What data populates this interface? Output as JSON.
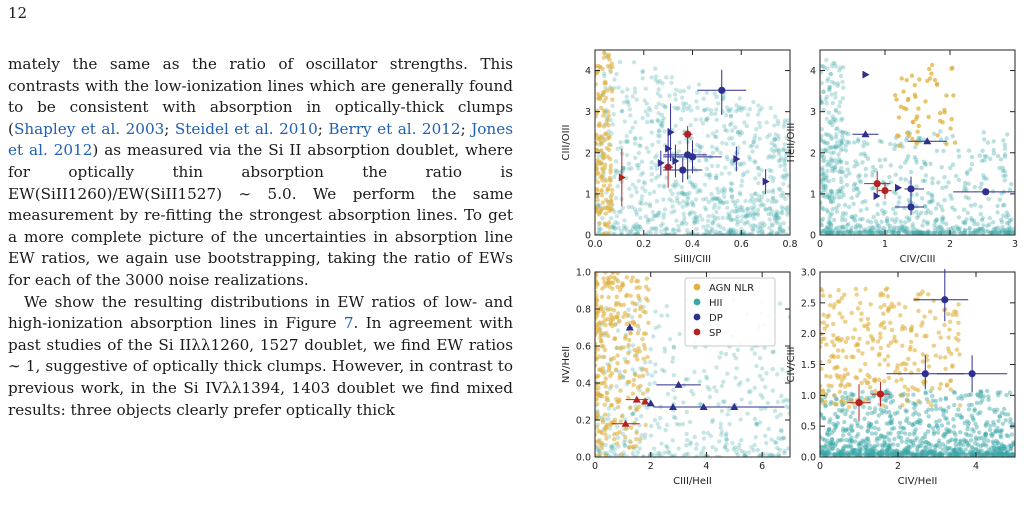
{
  "page_number": "12",
  "paragraphs": [
    {
      "indent": false,
      "segments": [
        {
          "t": "mately the same as the ratio of oscillator strengths. This contrasts with the low-ionization lines which are generally found to be consistent with absorption in optically-thick clumps ("
        },
        {
          "t": "Shapley et al. 2003",
          "cite": true
        },
        {
          "t": "; "
        },
        {
          "t": "Steidel et al. 2010",
          "cite": true
        },
        {
          "t": "; "
        },
        {
          "t": "Berry et al. 2012",
          "cite": true
        },
        {
          "t": "; "
        },
        {
          "t": "Jones et al. 2012",
          "cite": true
        },
        {
          "t": ") as measured via the Si II absorption doublet, where for optically thin absorption the ratio is EW(SiII1260)/EW(SiII1527) ∼ 5.0. We perform the same measurement by re-fitting the strongest absorption lines. To get a more complete picture of the uncertainties in absorption line EW ratios, we again use bootstrapping, taking the ratio of EWs for each of the 3000 noise realizations."
        }
      ]
    },
    {
      "indent": true,
      "segments": [
        {
          "t": "We show the resulting distributions in EW ratios of low- and high-ionization absorption lines in Figure "
        },
        {
          "t": "7",
          "cite": true
        },
        {
          "t": ". In agreement with past studies of the Si IIλλ1260, 1527 doublet, we find EW ratios ∼ 1, suggestive of optically thick clumps. However, in contrast to previous work, in the Si IVλλ1394, 1403 doublet we find mixed results: three objects clearly prefer optically thick"
        }
      ]
    }
  ],
  "colors": {
    "agn": "#e0b040",
    "hii": "#3aa6a6",
    "dp": "#2f2f8f",
    "sp": "#b22222",
    "cite": "#1f5fb5"
  },
  "chart_data": [
    {
      "type": "scatter",
      "id": "tl",
      "xlabel": "SiIII/CIII",
      "ylabel": "CIII/OIII",
      "xlim": [
        0,
        0.8
      ],
      "ylim": [
        0,
        4.5
      ],
      "xticks": [
        0.0,
        0.2,
        0.4,
        0.6,
        0.8
      ],
      "xticklabels": [
        "0.0",
        "0.2",
        "0.4",
        "0.6",
        "0.8"
      ],
      "yticks": [
        0,
        1,
        2,
        3,
        4
      ],
      "yticklabels": [
        "0",
        "1",
        "2",
        "3",
        "4"
      ],
      "points": [
        {
          "x": 0.52,
          "y": 3.52,
          "xe": [
            0.1,
            0.1
          ],
          "ye": [
            0.6,
            0.5
          ],
          "type": "dp",
          "marker": "circle"
        },
        {
          "x": 0.38,
          "y": 1.95,
          "xe": [
            0.1,
            0.08
          ],
          "ye": [
            0.6,
            0.6
          ],
          "type": "dp",
          "marker": "circle"
        },
        {
          "x": 0.4,
          "y": 1.9,
          "xe": [
            0.12,
            0.12
          ],
          "ye": [
            0.4,
            0.4
          ],
          "type": "dp",
          "marker": "circle"
        },
        {
          "x": 0.36,
          "y": 1.58,
          "xe": [
            0.08,
            0.08
          ],
          "ye": [
            0.3,
            0.3
          ],
          "type": "dp",
          "marker": "circle"
        },
        {
          "x": 0.38,
          "y": 2.45,
          "xe": [
            0.02,
            0.02
          ],
          "ye": [
            0.2,
            0.2
          ],
          "type": "sp",
          "marker": "circle"
        },
        {
          "x": 0.3,
          "y": 1.65,
          "xe": [
            0.02,
            0.02
          ],
          "ye": [
            0.5,
            0.5
          ],
          "type": "sp",
          "marker": "circle"
        },
        {
          "x": 0.11,
          "y": 1.4,
          "xe": [
            0.0,
            0.0
          ],
          "ye": [
            0.7,
            0.7
          ],
          "type": "sp",
          "marker": "tri-right"
        },
        {
          "x": 0.31,
          "y": 2.5,
          "xe": [
            0,
            0
          ],
          "ye": [
            0.7,
            0.7
          ],
          "type": "dp",
          "marker": "tri-right"
        },
        {
          "x": 0.3,
          "y": 2.1,
          "xe": [
            0,
            0
          ],
          "ye": [
            0.5,
            0.5
          ],
          "type": "dp",
          "marker": "tri-right"
        },
        {
          "x": 0.33,
          "y": 1.8,
          "xe": [
            0,
            0
          ],
          "ye": [
            0.4,
            0.4
          ],
          "type": "dp",
          "marker": "tri-right"
        },
        {
          "x": 0.27,
          "y": 1.75,
          "xe": [
            0,
            0
          ],
          "ye": [
            0.3,
            0.3
          ],
          "type": "dp",
          "marker": "tri-right"
        },
        {
          "x": 0.58,
          "y": 1.85,
          "xe": [
            0,
            0
          ],
          "ye": [
            0.3,
            0.3
          ],
          "type": "dp",
          "marker": "tri-right"
        },
        {
          "x": 0.7,
          "y": 1.3,
          "xe": [
            0,
            0
          ],
          "ye": [
            0.3,
            0.3
          ],
          "type": "dp",
          "marker": "tri-right"
        }
      ]
    },
    {
      "type": "scatter",
      "id": "tr",
      "xlabel": "CIV/CIII",
      "ylabel": "HeII/OIII",
      "xlim": [
        0,
        3
      ],
      "ylim": [
        0,
        4.5
      ],
      "xticks": [
        0,
        1,
        2,
        3
      ],
      "xticklabels": [
        "0",
        "1",
        "2",
        "3"
      ],
      "yticks": [
        0,
        1,
        2,
        3,
        4
      ],
      "yticklabels": [
        "0",
        "1",
        "2",
        "3",
        "4"
      ],
      "points": [
        {
          "x": 0.7,
          "y": 3.9,
          "xe": [
            0.05,
            0.05
          ],
          "ye": [
            0,
            0
          ],
          "type": "dp",
          "marker": "tri-right"
        },
        {
          "x": 0.7,
          "y": 2.45,
          "xe": [
            0.2,
            0.2
          ],
          "ye": [
            0,
            0
          ],
          "type": "dp",
          "marker": "tri-up"
        },
        {
          "x": 1.65,
          "y": 2.28,
          "xe": [
            0.3,
            0.3
          ],
          "ye": [
            0,
            0
          ],
          "type": "dp",
          "marker": "tri-up"
        },
        {
          "x": 0.88,
          "y": 1.25,
          "xe": [
            0.2,
            0.2
          ],
          "ye": [
            0.3,
            0.3
          ],
          "type": "sp",
          "marker": "circle"
        },
        {
          "x": 1.0,
          "y": 1.08,
          "xe": [
            0.1,
            0.1
          ],
          "ye": [
            0.2,
            0.2
          ],
          "type": "sp",
          "marker": "circle"
        },
        {
          "x": 1.4,
          "y": 1.12,
          "xe": [
            0.1,
            0.2
          ],
          "ye": [
            0.3,
            0.3
          ],
          "type": "dp",
          "marker": "circle"
        },
        {
          "x": 1.4,
          "y": 0.68,
          "xe": [
            0.25,
            0.2
          ],
          "ye": [
            0.2,
            0.2
          ],
          "type": "dp",
          "marker": "circle"
        },
        {
          "x": 2.55,
          "y": 1.05,
          "xe": [
            0.5,
            0.45
          ],
          "ye": [
            0.05,
            0.05
          ],
          "type": "dp",
          "marker": "circle"
        },
        {
          "x": 1.2,
          "y": 1.15,
          "xe": [
            0,
            0
          ],
          "ye": [
            0,
            0
          ],
          "type": "dp",
          "marker": "tri-right"
        },
        {
          "x": 0.87,
          "y": 0.95,
          "xe": [
            0,
            0
          ],
          "ye": [
            0,
            0
          ],
          "type": "dp",
          "marker": "tri-right"
        }
      ]
    },
    {
      "type": "scatter",
      "id": "bl",
      "xlabel": "CIII/HeII",
      "ylabel": "NV/HeII",
      "xlim": [
        0,
        7
      ],
      "ylim": [
        0,
        1.0
      ],
      "xticks": [
        0,
        2,
        4,
        6
      ],
      "xticklabels": [
        "0",
        "2",
        "4",
        "6"
      ],
      "yticks": [
        0.0,
        0.2,
        0.4,
        0.6,
        0.8,
        1.0
      ],
      "yticklabels": [
        "0.0",
        "0.2",
        "0.4",
        "0.6",
        "0.8",
        "1.0"
      ],
      "legend": {
        "position": "top-right",
        "entries": [
          {
            "label": "AGN NLR",
            "type": "agn"
          },
          {
            "label": "HII",
            "type": "hii"
          },
          {
            "label": "DP",
            "type": "dp"
          },
          {
            "label": "SP",
            "type": "sp"
          }
        ]
      },
      "points": [
        {
          "x": 1.25,
          "y": 0.7,
          "xe": [
            0.1,
            0.1
          ],
          "ye": [
            0,
            0
          ],
          "type": "dp",
          "marker": "tri-up"
        },
        {
          "x": 3.0,
          "y": 0.39,
          "xe": [
            0.8,
            0.8
          ],
          "ye": [
            0,
            0
          ],
          "type": "dp",
          "marker": "tri-up"
        },
        {
          "x": 1.5,
          "y": 0.31,
          "xe": [
            0.4,
            0.4
          ],
          "ye": [
            0,
            0
          ],
          "type": "sp",
          "marker": "tri-up"
        },
        {
          "x": 1.8,
          "y": 0.3,
          "xe": [
            0,
            0
          ],
          "ye": [
            0,
            0
          ],
          "type": "sp",
          "marker": "tri-up"
        },
        {
          "x": 2.0,
          "y": 0.29,
          "xe": [
            0,
            0
          ],
          "ye": [
            0,
            0
          ],
          "type": "dp",
          "marker": "tri-up"
        },
        {
          "x": 2.8,
          "y": 0.27,
          "xe": [
            0.7,
            0.7
          ],
          "ye": [
            0,
            0
          ],
          "type": "dp",
          "marker": "tri-up"
        },
        {
          "x": 3.9,
          "y": 0.27,
          "xe": [
            0,
            0
          ],
          "ye": [
            0,
            0
          ],
          "type": "dp",
          "marker": "tri-up"
        },
        {
          "x": 5.0,
          "y": 0.27,
          "xe": [
            1.6,
            1.8
          ],
          "ye": [
            0,
            0
          ],
          "type": "dp",
          "marker": "tri-up"
        },
        {
          "x": 1.1,
          "y": 0.18,
          "xe": [
            0.5,
            0.5
          ],
          "ye": [
            0,
            0
          ],
          "type": "sp",
          "marker": "tri-up"
        }
      ]
    },
    {
      "type": "scatter",
      "id": "br",
      "xlabel": "CIV/HeII",
      "ylabel": "CIV/CIII",
      "xlim": [
        0,
        5
      ],
      "ylim": [
        0,
        3.0
      ],
      "xticks": [
        0,
        2,
        4
      ],
      "xticklabels": [
        "0",
        "2",
        "4"
      ],
      "yticks": [
        0.0,
        0.5,
        1.0,
        1.5,
        2.0,
        2.5,
        3.0
      ],
      "yticklabels": [
        "0.0",
        "0.5",
        "1.0",
        "1.5",
        "2.0",
        "2.5",
        "3.0"
      ],
      "points": [
        {
          "x": 3.2,
          "y": 2.55,
          "xe": [
            0.8,
            0.6
          ],
          "ye": [
            0.35,
            0.5
          ],
          "type": "dp",
          "marker": "circle"
        },
        {
          "x": 2.7,
          "y": 1.35,
          "xe": [
            1.0,
            1.0
          ],
          "ye": [
            0.25,
            0.3
          ],
          "type": "dp",
          "marker": "circle"
        },
        {
          "x": 3.9,
          "y": 1.35,
          "xe": [
            0.9,
            0.9
          ],
          "ye": [
            0.3,
            0.3
          ],
          "type": "dp",
          "marker": "circle"
        },
        {
          "x": 1.55,
          "y": 1.02,
          "xe": [
            0.25,
            0.25
          ],
          "ye": [
            0.2,
            0.2
          ],
          "type": "sp",
          "marker": "circle"
        },
        {
          "x": 1.0,
          "y": 0.88,
          "xe": [
            0.3,
            0.3
          ],
          "ye": [
            0.3,
            0.3
          ],
          "type": "sp",
          "marker": "circle"
        }
      ]
    }
  ]
}
